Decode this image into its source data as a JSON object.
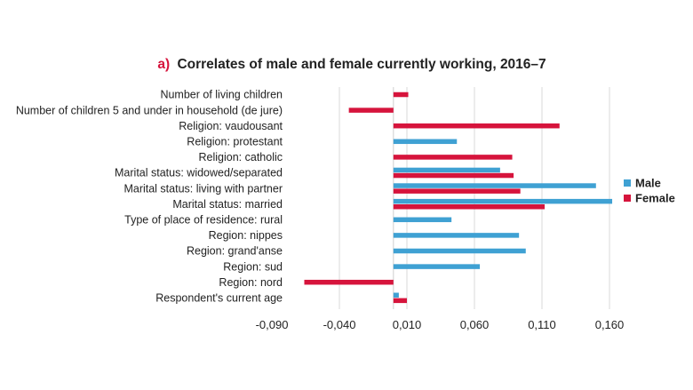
{
  "chart_data": {
    "type": "bar",
    "orientation": "horizontal",
    "title_tag": "a)",
    "title": "Correlates of male and female currently working, 2016–7",
    "categories": [
      "Number of living children",
      "Number of children 5 and under in household (de jure)",
      "Religion: vaudousant",
      "Religion: protestant",
      "Religion: catholic",
      "Marital status: widowed/separated",
      "Marital status: living with partner",
      "Marital status: married",
      "Type of place of residence: rural",
      "Region: nippes",
      "Region: grand'anse",
      "Region: sud",
      "Region: nord",
      "Respondent's current age"
    ],
    "series": [
      {
        "name": "Male",
        "color": "#3fa1d3",
        "values": [
          null,
          null,
          null,
          0.047,
          null,
          0.079,
          0.15,
          0.162,
          0.043,
          0.093,
          0.098,
          0.064,
          null,
          0.004
        ]
      },
      {
        "name": "Female",
        "color": "#d6143c",
        "values": [
          0.011,
          -0.033,
          0.123,
          null,
          0.088,
          0.089,
          0.094,
          0.112,
          null,
          null,
          null,
          null,
          -0.066,
          0.01
        ]
      }
    ],
    "xticks": [
      "-0,090",
      "-0,040",
      "0,010",
      "0,060",
      "0,110",
      "0,160"
    ],
    "xtick_values": [
      -0.09,
      -0.04,
      0.01,
      0.06,
      0.11,
      0.16
    ],
    "xlim": [
      -0.09,
      0.16
    ],
    "baseline": 0.0,
    "grid": true,
    "legend": "right"
  }
}
